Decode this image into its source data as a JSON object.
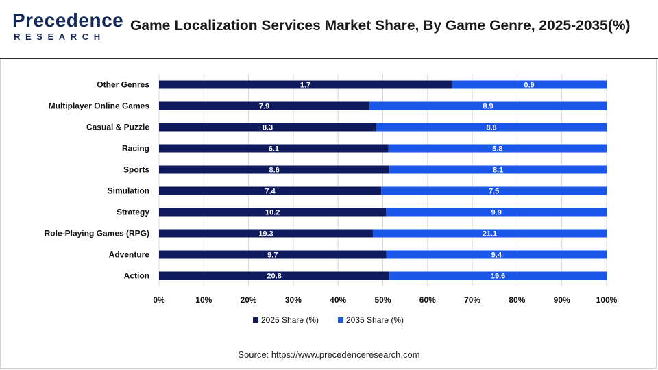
{
  "header": {
    "logo_main": "Precedence",
    "logo_sub": "RESEARCH",
    "title": "Game Localization Services Market Share, By Game Genre, 2025-2035(%)"
  },
  "source": "Source: https://www.precedenceresearch.com",
  "colors": {
    "series_2025": "#0f1a5c",
    "series_2035": "#1a56e8",
    "logo": "#13295a",
    "grid": "#d9d9d9"
  },
  "chart_data": {
    "type": "bar",
    "orientation": "horizontal",
    "stacked": "100%",
    "categories": [
      "Other Genres",
      "Multiplayer Online Games",
      "Casual & Puzzle",
      "Racing",
      "Sports",
      "Simulation",
      "Strategy",
      "Role-Playing Games (RPG)",
      "Adventure",
      "Action"
    ],
    "series": [
      {
        "name": "2025 Share (%)",
        "values": [
          1.7,
          7.9,
          8.3,
          6.1,
          8.6,
          7.4,
          10.2,
          19.3,
          9.7,
          20.8
        ]
      },
      {
        "name": "2035 Share (%)",
        "values": [
          0.9,
          8.9,
          8.8,
          5.8,
          8.1,
          7.5,
          9.9,
          21.1,
          9.4,
          19.6
        ]
      }
    ],
    "xticks": [
      "0%",
      "10%",
      "20%",
      "30%",
      "40%",
      "50%",
      "60%",
      "70%",
      "80%",
      "90%",
      "100%"
    ],
    "xlim": [
      0,
      100
    ],
    "grid": true,
    "legend": "bottom-center"
  }
}
